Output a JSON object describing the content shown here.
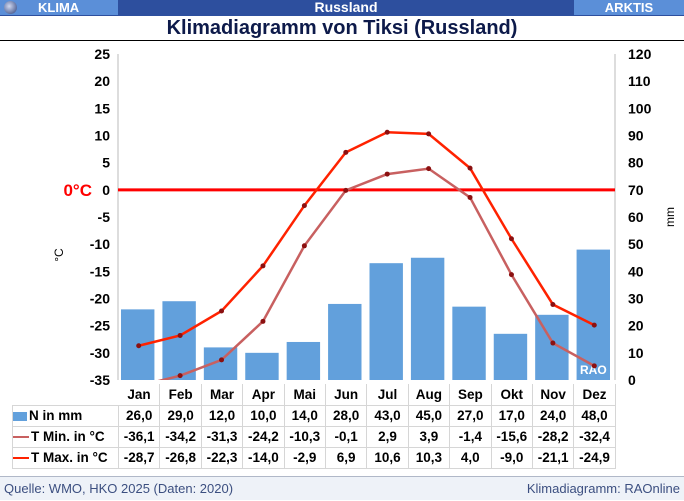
{
  "topbar": {
    "left": "KLIMA",
    "center": "Russland",
    "right": "ARKTIS"
  },
  "title": "Klimadiagramm von Tiksi (Russland)",
  "footer": {
    "source": "Quelle: WMO, HKO 2025 (Daten: 2020)",
    "credit": "Klimadiagramm: RAOnline"
  },
  "colors": {
    "bar": "#62a0dc",
    "tmin": "#c86060",
    "tmax": "#ff2200",
    "zero": "#ff0000"
  },
  "chart_data": {
    "type": "bar+line",
    "title": "Klimadiagramm von Tiksi (Russland)",
    "categories": [
      "Jan",
      "Feb",
      "Mar",
      "Apr",
      "Mai",
      "Jun",
      "Jul",
      "Aug",
      "Sep",
      "Okt",
      "Nov",
      "Dez"
    ],
    "ylabel_left": "°C",
    "ylabel_right": "mm",
    "ylim_left": [
      -35,
      25
    ],
    "yticks_left": [
      25,
      20,
      15,
      10,
      5,
      0,
      -5,
      -10,
      -15,
      -20,
      -25,
      -30,
      -35
    ],
    "ylim_right": [
      0,
      120
    ],
    "yticks_right": [
      120,
      110,
      100,
      90,
      80,
      70,
      60,
      50,
      40,
      30,
      20,
      10,
      0
    ],
    "zero_label": "0°C",
    "watermark": "RAO",
    "series": [
      {
        "name": "N in mm",
        "type": "bar",
        "axis": "right",
        "values": [
          26.0,
          29.0,
          12.0,
          10.0,
          14.0,
          28.0,
          43.0,
          45.0,
          27.0,
          17.0,
          24.0,
          48.0
        ],
        "labels": [
          "26,0",
          "29,0",
          "12,0",
          "10,0",
          "14,0",
          "28,0",
          "43,0",
          "45,0",
          "27,0",
          "17,0",
          "24,0",
          "48,0"
        ]
      },
      {
        "name": "T Min. in °C",
        "type": "line",
        "axis": "left",
        "values": [
          -36.1,
          -34.2,
          -31.3,
          -24.2,
          -10.3,
          -0.1,
          2.9,
          3.9,
          -1.4,
          -15.6,
          -28.2,
          -32.4
        ],
        "labels": [
          "-36,1",
          "-34,2",
          "-31,3",
          "-24,2",
          "-10,3",
          "-0,1",
          "2,9",
          "3,9",
          "-1,4",
          "-15,6",
          "-28,2",
          "-32,4"
        ]
      },
      {
        "name": "T Max. in °C",
        "type": "line",
        "axis": "left",
        "values": [
          -28.7,
          -26.8,
          -22.3,
          -14.0,
          -2.9,
          6.9,
          10.6,
          10.3,
          4.0,
          -9.0,
          -21.1,
          -24.9
        ],
        "labels": [
          "-28,7",
          "-26,8",
          "-22,3",
          "-14,0",
          "-2,9",
          "6,9",
          "10,6",
          "10,3",
          "4,0",
          "-9,0",
          "-21,1",
          "-24,9"
        ]
      }
    ]
  }
}
